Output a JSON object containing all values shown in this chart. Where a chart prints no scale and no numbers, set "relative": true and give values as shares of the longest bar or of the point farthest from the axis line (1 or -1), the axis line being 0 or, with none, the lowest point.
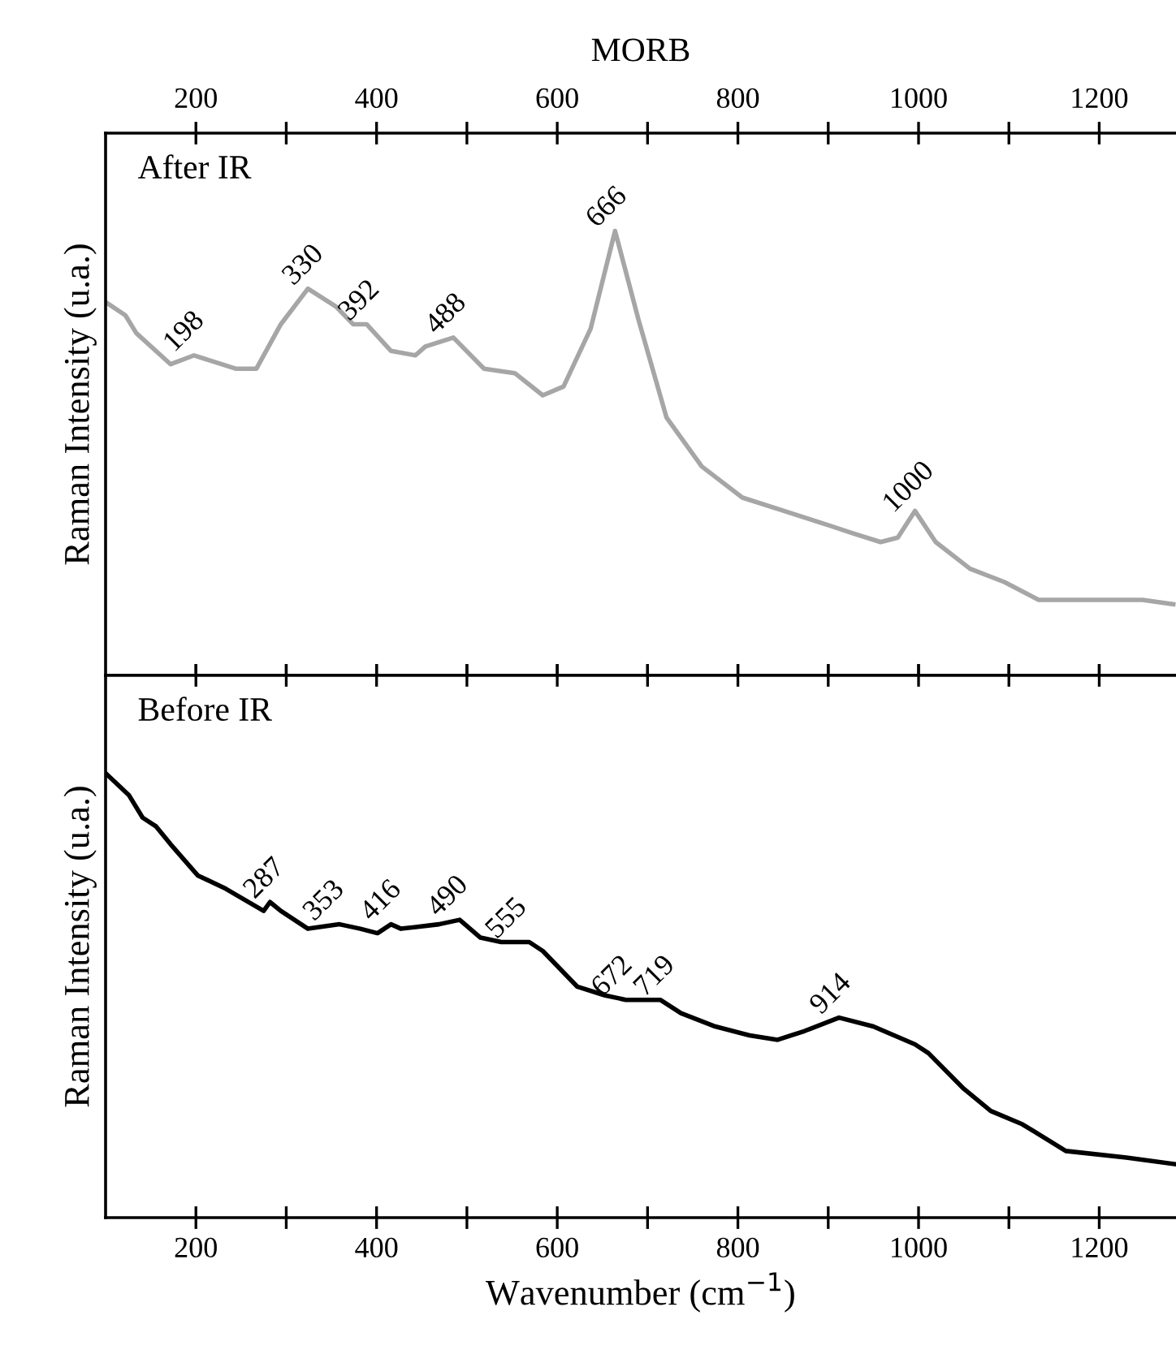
{
  "chart_data": [
    {
      "type": "line",
      "title": "MORB",
      "subtitle": "After IR",
      "ylabel": "Raman Intensity (u.a.)",
      "relative": true,
      "xlim": [
        100,
        1285
      ],
      "xticks": [
        200,
        {
          "value": 300,
          "label": null
        },
        400,
        {
          "value": 500,
          "label": null
        },
        600,
        {
          "value": 700,
          "label": null
        },
        800,
        {
          "value": 900,
          "label": null
        },
        1000,
        {
          "value": 1100,
          "label": null
        },
        1200
      ],
      "series": [
        {
          "color": "#a6a6a6",
          "x": [
            100,
            122,
            134,
            172,
            198,
            244,
            267,
            294,
            324,
            355,
            374,
            389,
            416,
            443,
            454,
            485,
            519,
            553,
            584,
            607,
            637,
            664,
            690,
            721,
            760,
            805,
            851,
            897,
            927,
            958,
            977,
            996,
            1019,
            1057,
            1095,
            1133,
            1195,
            1248,
            1282
          ],
          "values": [
            0.84,
            0.81,
            0.77,
            0.7,
            0.72,
            0.69,
            0.69,
            0.79,
            0.87,
            0.83,
            0.79,
            0.79,
            0.73,
            0.72,
            0.74,
            0.76,
            0.69,
            0.68,
            0.63,
            0.65,
            0.78,
            1.0,
            0.8,
            0.58,
            0.47,
            0.4,
            0.37,
            0.34,
            0.32,
            0.3,
            0.31,
            0.37,
            0.3,
            0.24,
            0.21,
            0.17,
            0.17,
            0.17,
            0.16
          ]
        }
      ],
      "annotations": [
        {
          "text": "198",
          "x": 198,
          "y": 0.72
        },
        {
          "text": "330",
          "x": 330,
          "y": 0.87
        },
        {
          "text": "392",
          "x": 392,
          "y": 0.79
        },
        {
          "text": "488",
          "x": 488,
          "y": 0.76
        },
        {
          "text": "666",
          "x": 666,
          "y": 1.0
        },
        {
          "text": "1000",
          "x": 1000,
          "y": 0.37
        }
      ]
    },
    {
      "type": "line",
      "subtitle": "Before IR",
      "xlabel": "Wavenumber (cm$^{−1}$)",
      "ylabel": "Raman Intensity (u.a.)",
      "relative": true,
      "xlim": [
        100,
        1285
      ],
      "xticks": [
        200,
        {
          "value": 300,
          "label": null
        },
        400,
        {
          "value": 500,
          "label": null
        },
        600,
        {
          "value": 700,
          "label": null
        },
        800,
        {
          "value": 900,
          "label": null
        },
        1000,
        {
          "value": 1100,
          "label": null
        },
        1200
      ],
      "series": [
        {
          "color": "#000000",
          "x": [
            100,
            126,
            141,
            156,
            172,
            202,
            233,
            275,
            282,
            294,
            324,
            359,
            382,
            401,
            416,
            427,
            469,
            492,
            515,
            538,
            569,
            584,
            622,
            653,
            676,
            714,
            737,
            775,
            813,
            844,
            874,
            912,
            950,
            996,
            1011,
            1050,
            1080,
            1115,
            1163,
            1230,
            1285
          ],
          "values": [
            1.0,
            0.95,
            0.9,
            0.88,
            0.84,
            0.77,
            0.74,
            0.69,
            0.71,
            0.69,
            0.65,
            0.66,
            0.65,
            0.64,
            0.66,
            0.65,
            0.66,
            0.67,
            0.63,
            0.62,
            0.62,
            0.6,
            0.52,
            0.5,
            0.49,
            0.49,
            0.46,
            0.43,
            0.41,
            0.4,
            0.42,
            0.45,
            0.43,
            0.39,
            0.37,
            0.29,
            0.24,
            0.21,
            0.15,
            0.135,
            0.12
          ]
        }
      ],
      "annotations": [
        {
          "text": "287",
          "x": 287,
          "y": 0.71
        },
        {
          "text": "353",
          "x": 353,
          "y": 0.66
        },
        {
          "text": "416",
          "x": 416,
          "y": 0.66
        },
        {
          "text": "490",
          "x": 490,
          "y": 0.67
        },
        {
          "text": "555",
          "x": 555,
          "y": 0.62
        },
        {
          "text": "672",
          "x": 672,
          "y": 0.49
        },
        {
          "text": "719",
          "x": 719,
          "y": 0.49
        },
        {
          "text": "914",
          "x": 914,
          "y": 0.45
        }
      ]
    }
  ]
}
